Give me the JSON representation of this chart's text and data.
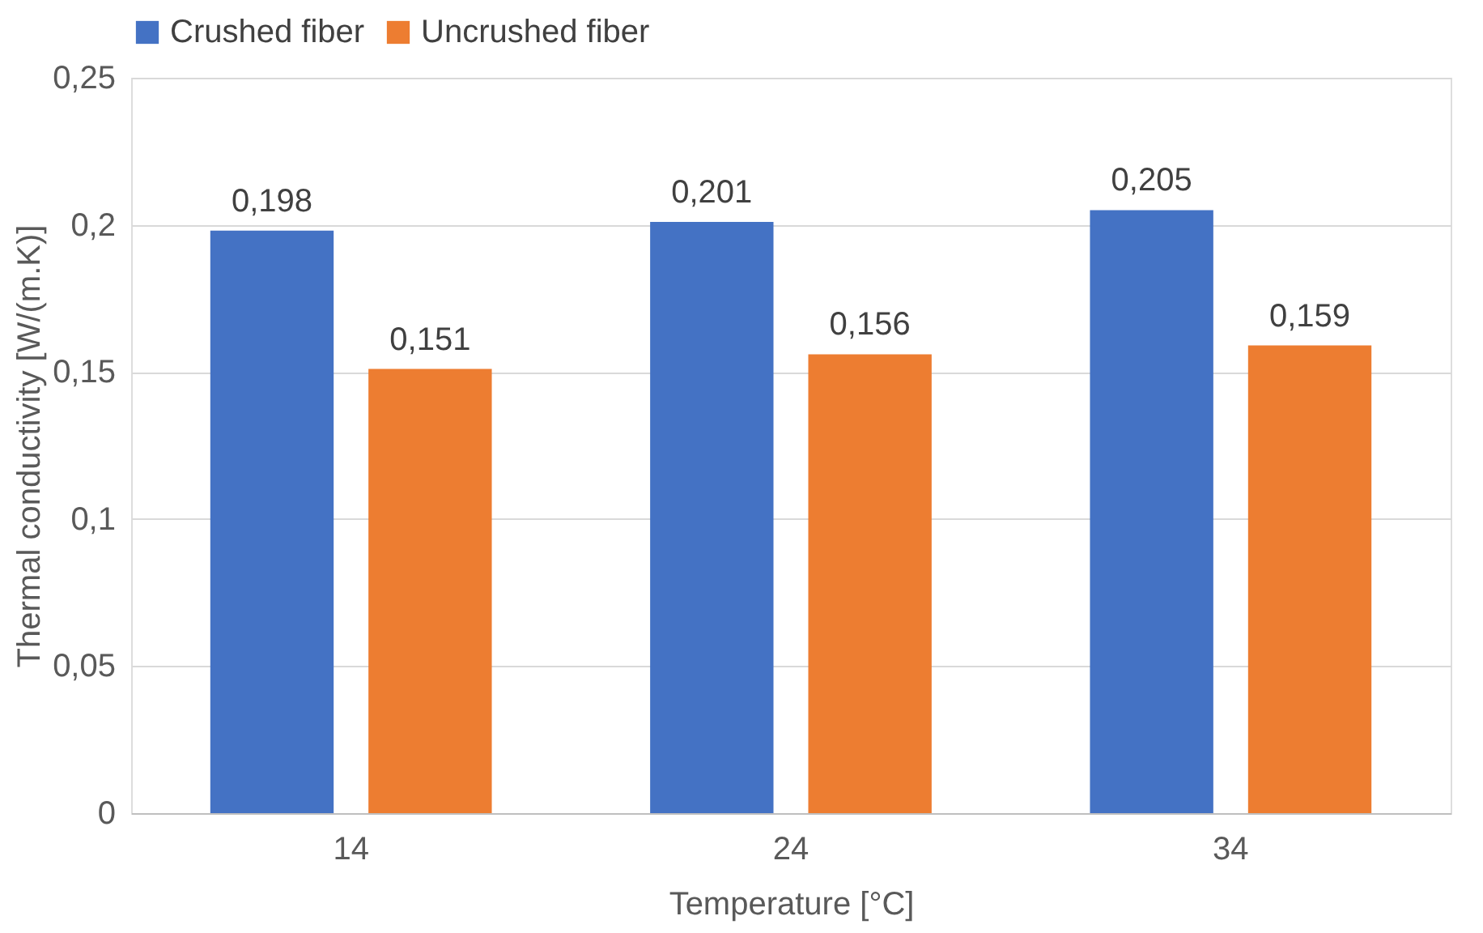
{
  "chart_data": {
    "type": "bar",
    "xlabel": "Temperature [°C]",
    "ylabel": "Thermal conductivity [W/(m.K)]",
    "categories": [
      "14",
      "24",
      "34"
    ],
    "series": [
      {
        "name": "Crushed fiber",
        "color": "#4472c4",
        "values": [
          0.198,
          0.201,
          0.205
        ],
        "value_labels": [
          "0,198",
          "0,201",
          "0,205"
        ]
      },
      {
        "name": "Uncrushed fiber",
        "color": "#ed7d31",
        "values": [
          0.151,
          0.156,
          0.159
        ],
        "value_labels": [
          "0,151",
          "0,156",
          "0,159"
        ]
      }
    ],
    "ylim": [
      0,
      0.25
    ],
    "yticks": [
      0,
      {
        "value": 0.05,
        "label": "0,05"
      },
      {
        "value": 0.1,
        "label": "0,1"
      },
      {
        "value": 0.15,
        "label": "0,15"
      },
      {
        "value": 0.2,
        "label": "0,2"
      },
      {
        "value": 0.25,
        "label": "0,25"
      }
    ],
    "grid": "y",
    "legend": "top"
  }
}
